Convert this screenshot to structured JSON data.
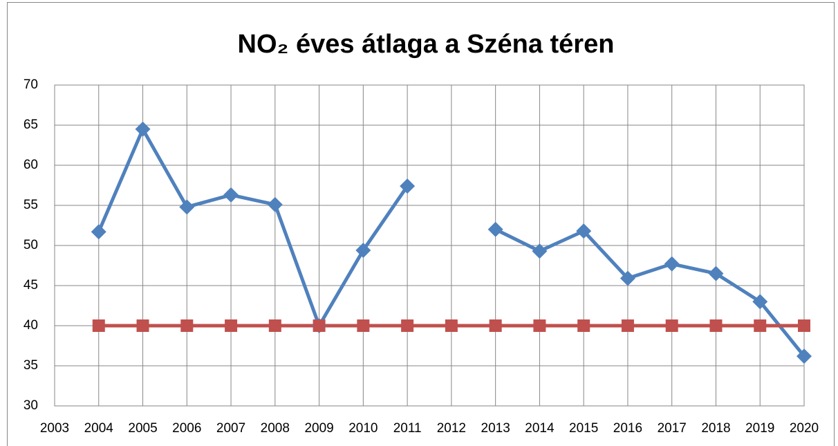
{
  "chart_data": {
    "type": "line",
    "title": "NO₂ éves átlaga a Széna téren",
    "x": [
      2004,
      2005,
      2006,
      2007,
      2008,
      2009,
      2010,
      2011,
      2012,
      2013,
      2014,
      2015,
      2016,
      2017,
      2018,
      2019,
      2020
    ],
    "series": [
      {
        "color": "#4f81bd",
        "marker": "diamond",
        "values": [
          51.7,
          64.5,
          54.8,
          56.3,
          55.1,
          40,
          49.4,
          57.4,
          null,
          52.0,
          49.3,
          51.8,
          45.9,
          47.7,
          46.5,
          43.0,
          36.2
        ]
      },
      {
        "color": "#c0504d",
        "marker": "square",
        "values": [
          40,
          40,
          40,
          40,
          40,
          40,
          40,
          40,
          40,
          40,
          40,
          40,
          40,
          40,
          40,
          40,
          40
        ]
      }
    ],
    "xlim": [
      2003,
      2020
    ],
    "xticks": [
      2003,
      2004,
      2005,
      2006,
      2007,
      2008,
      2009,
      2010,
      2011,
      2012,
      2013,
      2014,
      2015,
      2016,
      2017,
      2018,
      2019,
      2020
    ],
    "ylim": [
      30,
      70
    ],
    "yticks": [
      30,
      35,
      40,
      45,
      50,
      55,
      60,
      65,
      70
    ],
    "grid": true
  }
}
